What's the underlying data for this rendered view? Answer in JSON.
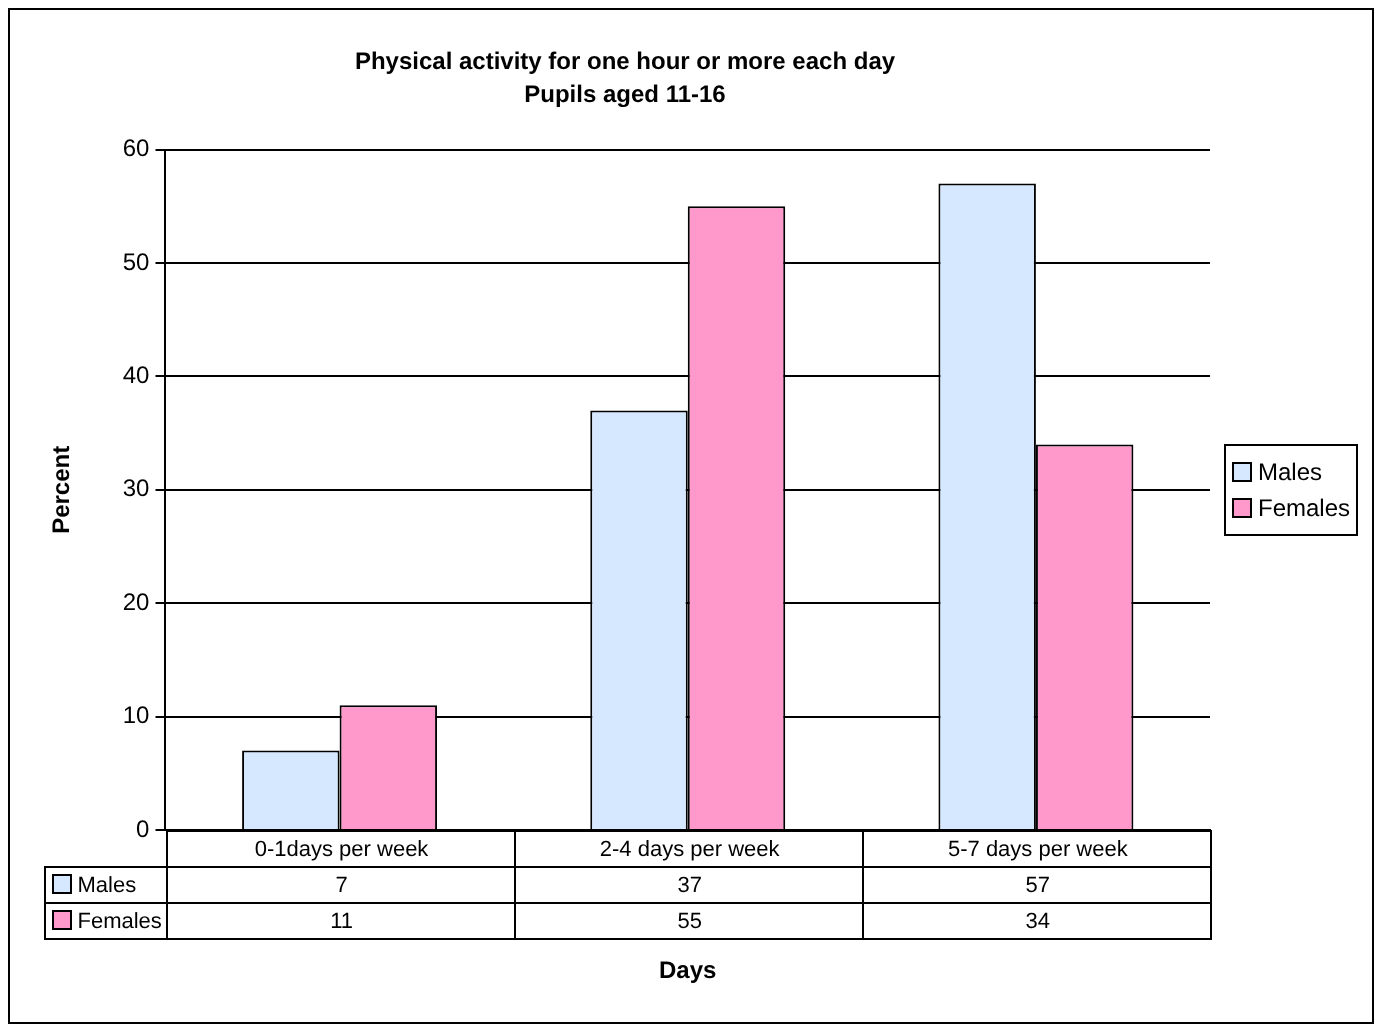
{
  "chart_data": {
    "type": "bar",
    "title": "Physical activity for one hour or more each day",
    "subtitle": "Pupils aged 11-16",
    "xlabel": "Days",
    "ylabel": "Percent",
    "categories": [
      "0-1days per week",
      "2-4 days per week",
      "5-7 days per week"
    ],
    "series": [
      {
        "name": "Males",
        "color": "#d6e8ff",
        "values": [
          7,
          37,
          57
        ]
      },
      {
        "name": "Females",
        "color": "#ff99cc",
        "values": [
          11,
          55,
          34
        ]
      }
    ],
    "ylim": [
      0,
      60
    ],
    "yticks": [
      0,
      10,
      20,
      30,
      40,
      50,
      60
    ],
    "grid": "y",
    "legend": "right",
    "data_labels": true
  }
}
